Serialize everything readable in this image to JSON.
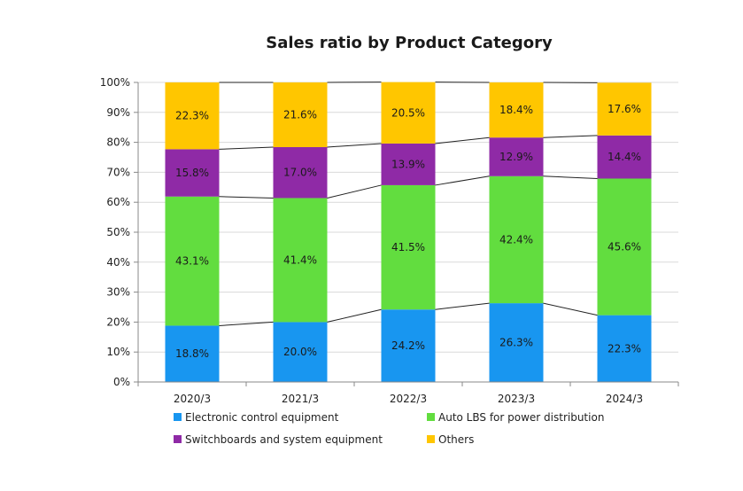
{
  "chart_data": {
    "type": "bar",
    "stacked": true,
    "title": "Sales ratio by Product Category",
    "categories": [
      "2020/3",
      "2021/3",
      "2022/3",
      "2023/3",
      "2024/3"
    ],
    "y_ticks": [
      "0%",
      "10%",
      "20%",
      "30%",
      "40%",
      "50%",
      "60%",
      "70%",
      "80%",
      "90%",
      "100%"
    ],
    "ylim": [
      0,
      100
    ],
    "series": [
      {
        "name": "Electronic control equipment",
        "color": "#1896f0",
        "values": [
          18.8,
          20.0,
          24.2,
          26.3,
          22.3
        ],
        "labels": [
          "18.8%",
          "20.0%",
          "24.2%",
          "26.3%",
          "22.3%"
        ]
      },
      {
        "name": "Auto LBS for power distribution",
        "color": "#62dd3f",
        "values": [
          43.1,
          41.4,
          41.5,
          42.4,
          45.6
        ],
        "labels": [
          "43.1%",
          "41.4%",
          "41.5%",
          "42.4%",
          "45.6%"
        ]
      },
      {
        "name": "Switchboards and system equipment",
        "color": "#8f2aa6",
        "values": [
          15.8,
          17.0,
          13.9,
          12.9,
          14.4
        ],
        "labels": [
          "15.8%",
          "17.0%",
          "13.9%",
          "12.9%",
          "14.4%"
        ]
      },
      {
        "name": "Others",
        "color": "#ffc600",
        "values": [
          22.3,
          21.6,
          20.5,
          18.4,
          17.6
        ],
        "labels": [
          "22.3%",
          "21.6%",
          "20.5%",
          "18.4%",
          "17.6%"
        ]
      }
    ],
    "legend": "bottom"
  }
}
